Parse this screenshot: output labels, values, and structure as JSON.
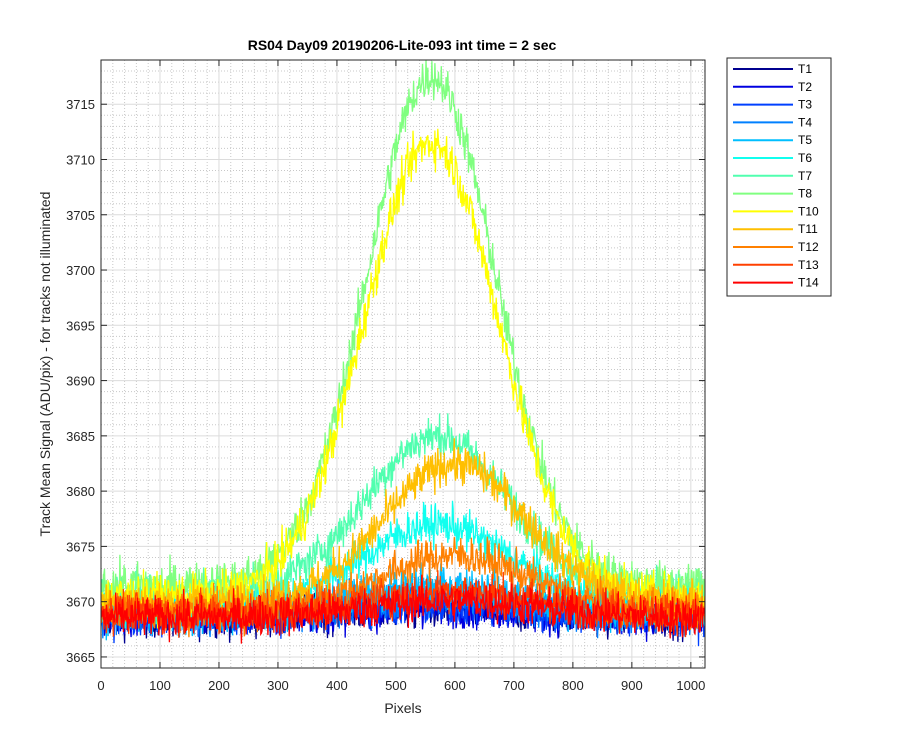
{
  "chart_data": {
    "type": "line",
    "title": "RS04 Day09 20190206-Lite-093 int time = 2 sec",
    "xlabel": "Pixels",
    "ylabel": "Track Mean Signal (ADU/pix) - for tracks not illuminated",
    "xlim": [
      0,
      1024
    ],
    "ylim": [
      3664,
      3719
    ],
    "xticks": [
      0,
      100,
      200,
      300,
      400,
      500,
      600,
      700,
      800,
      900,
      1000
    ],
    "yticks": [
      3665,
      3670,
      3675,
      3680,
      3685,
      3690,
      3695,
      3700,
      3705,
      3710,
      3715
    ],
    "grid": true,
    "minor_grid": true,
    "legend_position": "outside-top-right",
    "series": [
      {
        "name": "T1",
        "color": "#00008f",
        "baseline": 3668.6,
        "peak": 0.8,
        "center": 560,
        "width": 300,
        "noise": 1.3
      },
      {
        "name": "T2",
        "color": "#0000e0",
        "baseline": 3668.6,
        "peak": 0.9,
        "center": 560,
        "width": 300,
        "noise": 1.3
      },
      {
        "name": "T3",
        "color": "#0040ff",
        "baseline": 3668.7,
        "peak": 1.0,
        "center": 560,
        "width": 300,
        "noise": 1.3
      },
      {
        "name": "T4",
        "color": "#0080ff",
        "baseline": 3668.8,
        "peak": 1.5,
        "center": 560,
        "width": 300,
        "noise": 1.3
      },
      {
        "name": "T5",
        "color": "#00bfff",
        "baseline": 3669.0,
        "peak": 2.5,
        "center": 570,
        "width": 280,
        "noise": 1.3
      },
      {
        "name": "T6",
        "color": "#10ffef",
        "baseline": 3670.0,
        "peak": 7.0,
        "center": 570,
        "width": 250,
        "noise": 1.3
      },
      {
        "name": "T7",
        "color": "#50ffaf",
        "baseline": 3671.0,
        "peak": 14.0,
        "center": 570,
        "width": 250,
        "noise": 1.3
      },
      {
        "name": "T8",
        "color": "#80ff80",
        "baseline": 3671.5,
        "peak": 46.0,
        "center": 560,
        "width": 230,
        "noise": 1.4
      },
      {
        "name": "T10",
        "color": "#ffff00",
        "baseline": 3670.5,
        "peak": 41.0,
        "center": 560,
        "width": 240,
        "noise": 1.4
      },
      {
        "name": "T11",
        "color": "#ffbf00",
        "baseline": 3670.0,
        "peak": 12.5,
        "center": 600,
        "width": 250,
        "noise": 1.3
      },
      {
        "name": "T12",
        "color": "#ff8000",
        "baseline": 3669.2,
        "peak": 5.0,
        "center": 600,
        "width": 260,
        "noise": 1.3
      },
      {
        "name": "T13",
        "color": "#ff4000",
        "baseline": 3669.0,
        "peak": 2.0,
        "center": 600,
        "width": 280,
        "noise": 1.3
      },
      {
        "name": "T14",
        "color": "#ff0000",
        "baseline": 3668.6,
        "peak": 1.5,
        "center": 600,
        "width": 300,
        "noise": 1.3
      }
    ]
  }
}
